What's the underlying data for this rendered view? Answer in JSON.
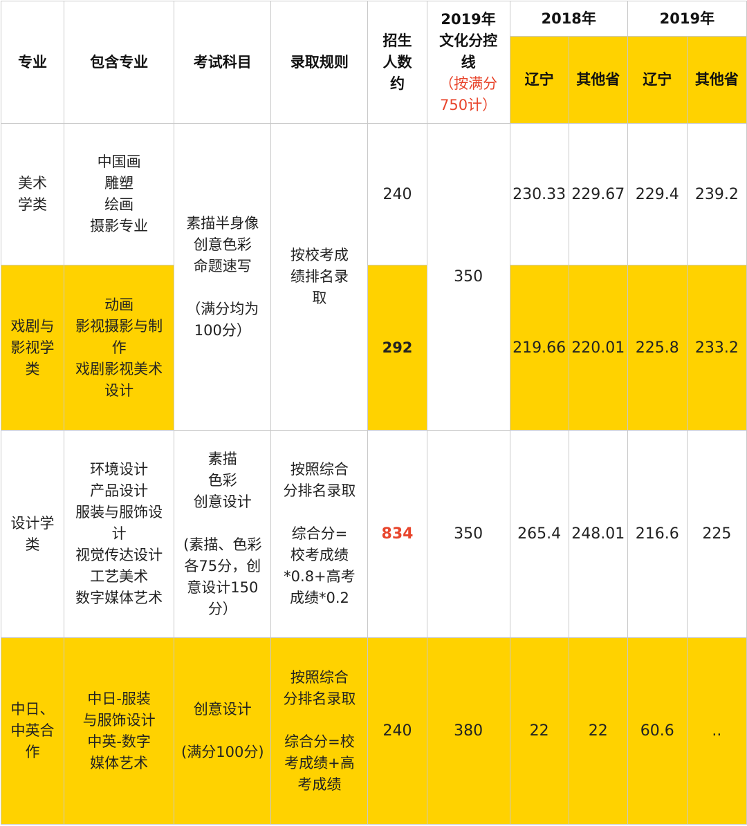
{
  "header": {
    "major": "专业",
    "includes": "包含专业",
    "subjects": "考试科目",
    "rules": "录取规则",
    "enroll": "招生\n人数\n约",
    "cutoff_title": "2019年\n文化分控\n线",
    "cutoff_note": "（按满分\n750计）",
    "year_2018": "2018年",
    "year_2019": "2019年",
    "liaoning": "辽宁",
    "other": "其他省"
  },
  "rows": [
    {
      "major": "美术\n学类",
      "includes": "中国画\n雕塑\n绘画\n摄影专业",
      "enroll": "240",
      "s18_ln": "230.33",
      "s18_ot": "229.67",
      "s19_ln": "229.4",
      "s19_ot": "239.2"
    },
    {
      "major": "戏剧与\n影视学\n类",
      "includes": "动画\n影视摄影与制\n作\n戏剧影视美术\n设计",
      "enroll": "292",
      "s18_ln": "219.66",
      "s18_ot": "220.01",
      "s19_ln": "225.8",
      "s19_ot": "233.2"
    },
    {
      "major": "设计学\n类",
      "includes": "环境设计\n产品设计\n服装与服饰设\n计\n视觉传达设计\n工艺美术\n数字媒体艺术",
      "subjects": "素描\n色彩\n创意设计\n\n(素描、色彩\n各75分，创\n意设计150\n分）",
      "rules": "按照综合\n分排名录取\n\n综合分=\n校考成绩\n*0.8+高考\n成绩*0.2",
      "enroll": "834",
      "cutoff": "350",
      "s18_ln": "265.4",
      "s18_ot": "248.01",
      "s19_ln": "216.6",
      "s19_ot": "225"
    },
    {
      "major": "中日、\n中英合\n作",
      "includes": "中日-服装\n与服饰设计\n中英-数字\n媒体艺术",
      "subjects": "创意设计\n\n(满分100分)",
      "rules": "按照综合\n分排名录取\n\n综合分=校\n考成绩+高\n考成绩",
      "enroll": "240",
      "cutoff": "380",
      "s18_ln": "22",
      "s18_ot": "22",
      "s19_ln": "60.6",
      "s19_ot": ".."
    }
  ],
  "shared": {
    "subjects": "素描半身像\n创意色彩\n命题速写\n\n（满分均为\n100分）",
    "rules": "按校考成\n绩排名录\n取",
    "cutoff": "350"
  },
  "colors": {
    "highlight": "#ffd200",
    "accent_red": "#e8452c",
    "border": "#c8c8c8"
  }
}
